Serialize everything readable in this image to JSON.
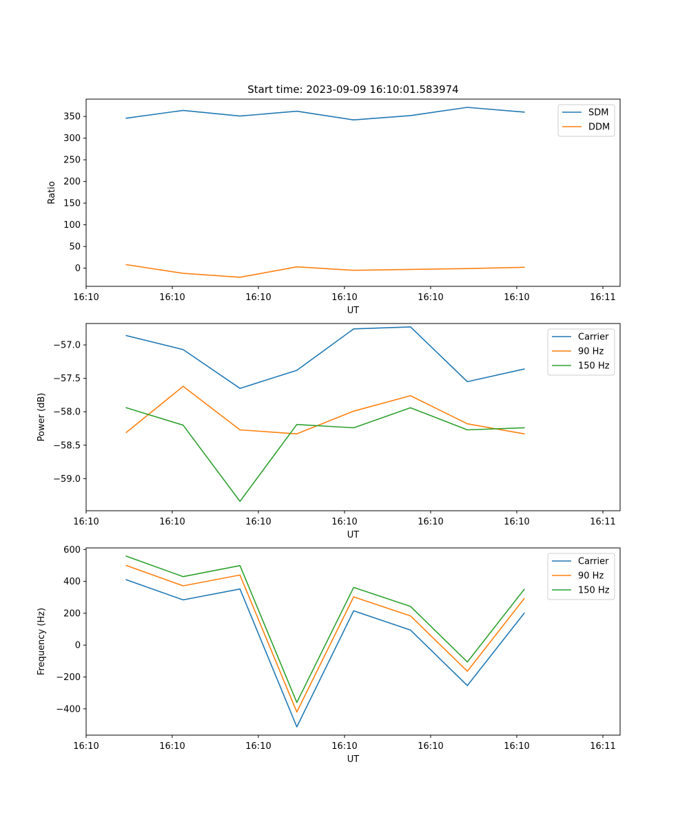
{
  "chart_data": [
    {
      "type": "line",
      "title": "Start time: 2023-09-09 16:10:01.583974",
      "xlabel": "UT",
      "ylabel": "Ratio",
      "xlim": [
        0,
        9.3
      ],
      "x_tick_positions": [
        0,
        1.5,
        3,
        4.5,
        6,
        7.5,
        9
      ],
      "x_tick_labels": [
        "16:10",
        "16:10",
        "16:10",
        "16:10",
        "16:10",
        "16:10",
        "16:11"
      ],
      "ylim": [
        -42,
        390
      ],
      "y_ticks": [
        0,
        50,
        100,
        150,
        200,
        250,
        300,
        350
      ],
      "y_tick_labels": [
        "0",
        "50",
        "100",
        "150",
        "200",
        "250",
        "300",
        "350"
      ],
      "x": [
        0.7,
        1.69,
        2.68,
        3.67,
        4.66,
        5.65,
        6.64,
        7.63
      ],
      "legend": "top-right",
      "series": [
        {
          "name": "SDM",
          "color": "#1f77b4",
          "values": [
            346,
            364,
            351,
            362,
            342,
            352,
            371,
            360
          ]
        },
        {
          "name": "DDM",
          "color": "#ff7f0e",
          "values": [
            8,
            -12,
            -21,
            3,
            -5,
            -3,
            -1,
            2
          ]
        }
      ]
    },
    {
      "type": "line",
      "title": "",
      "xlabel": "UT",
      "ylabel": "Power (dB)",
      "xlim": [
        0,
        9.3
      ],
      "x_tick_positions": [
        0,
        1.5,
        3,
        4.5,
        6,
        7.5,
        9
      ],
      "x_tick_labels": [
        "16:10",
        "16:10",
        "16:10",
        "16:10",
        "16:10",
        "16:10",
        "16:11"
      ],
      "ylim": [
        -59.48,
        -56.68
      ],
      "y_ticks": [
        -57.0,
        -57.5,
        -58.0,
        -58.5,
        -59.0
      ],
      "y_tick_labels": [
        "−57.0",
        "−57.5",
        "−58.0",
        "−58.5",
        "−59.0"
      ],
      "x": [
        0.7,
        1.69,
        2.68,
        3.67,
        4.66,
        5.65,
        6.64,
        7.63
      ],
      "legend": "top-right",
      "series": [
        {
          "name": "Carrier",
          "color": "#1f77b4",
          "values": [
            -56.86,
            -57.07,
            -57.65,
            -57.38,
            -56.76,
            -56.73,
            -57.55,
            -57.36
          ]
        },
        {
          "name": "90 Hz",
          "color": "#ff7f0e",
          "values": [
            -58.31,
            -57.62,
            -58.27,
            -58.33,
            -57.99,
            -57.76,
            -58.18,
            -58.33
          ]
        },
        {
          "name": "150 Hz",
          "color": "#2ca02c",
          "values": [
            -57.94,
            -58.2,
            -59.34,
            -58.19,
            -58.24,
            -57.94,
            -58.27,
            -58.24
          ]
        }
      ]
    },
    {
      "type": "line",
      "title": "",
      "xlabel": "UT",
      "ylabel": "Frequency (Hz)",
      "xlim": [
        0,
        9.3
      ],
      "x_tick_positions": [
        0,
        1.5,
        3,
        4.5,
        6,
        7.5,
        9
      ],
      "x_tick_labels": [
        "16:10",
        "16:10",
        "16:10",
        "16:10",
        "16:10",
        "16:10",
        "16:11"
      ],
      "ylim": [
        -565,
        610
      ],
      "y_ticks": [
        -400,
        -200,
        0,
        200,
        400,
        600
      ],
      "y_tick_labels": [
        "−400",
        "−200",
        "0",
        "200",
        "400",
        "600"
      ],
      "x": [
        0.7,
        1.69,
        2.68,
        3.67,
        4.66,
        5.65,
        6.64,
        7.63
      ],
      "legend": "top-right",
      "series": [
        {
          "name": "Carrier",
          "color": "#1f77b4",
          "values": [
            410,
            284,
            352,
            -513,
            215,
            94,
            -254,
            200
          ]
        },
        {
          "name": "90 Hz",
          "color": "#ff7f0e",
          "values": [
            500,
            372,
            440,
            -420,
            303,
            183,
            -164,
            292
          ]
        },
        {
          "name": "150 Hz",
          "color": "#2ca02c",
          "values": [
            558,
            430,
            499,
            -360,
            362,
            243,
            -106,
            350
          ]
        }
      ]
    }
  ]
}
